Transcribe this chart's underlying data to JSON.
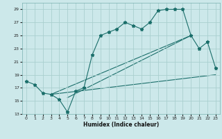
{
  "xlabel": "Humidex (Indice chaleur)",
  "xlim": [
    -0.5,
    23.5
  ],
  "ylim": [
    13,
    30
  ],
  "yticks": [
    13,
    15,
    17,
    19,
    21,
    23,
    25,
    27,
    29
  ],
  "xticks": [
    0,
    1,
    2,
    3,
    4,
    5,
    6,
    7,
    8,
    9,
    10,
    11,
    12,
    13,
    14,
    15,
    16,
    17,
    18,
    19,
    20,
    21,
    22,
    23
  ],
  "bg_color": "#cce8ea",
  "grid_color": "#aacfcf",
  "line_color": "#1a6e6a",
  "x_main": [
    0,
    1,
    2,
    3,
    4,
    5,
    6,
    7,
    8,
    9,
    10,
    11,
    12,
    13,
    14,
    15,
    16,
    17,
    18,
    19,
    20,
    21,
    22,
    23
  ],
  "y_main": [
    18,
    17.5,
    16.2,
    16,
    15.2,
    13.3,
    16.5,
    17,
    22,
    25,
    25.5,
    26,
    27,
    26.5,
    26,
    27,
    28.8,
    29,
    29,
    29,
    25,
    23,
    24,
    20
  ],
  "straight_lines": [
    {
      "x": [
        3,
        20
      ],
      "y": [
        16,
        25
      ]
    },
    {
      "x": [
        5,
        20
      ],
      "y": [
        15.5,
        25
      ]
    },
    {
      "x": [
        3,
        23
      ],
      "y": [
        16,
        19
      ]
    }
  ]
}
